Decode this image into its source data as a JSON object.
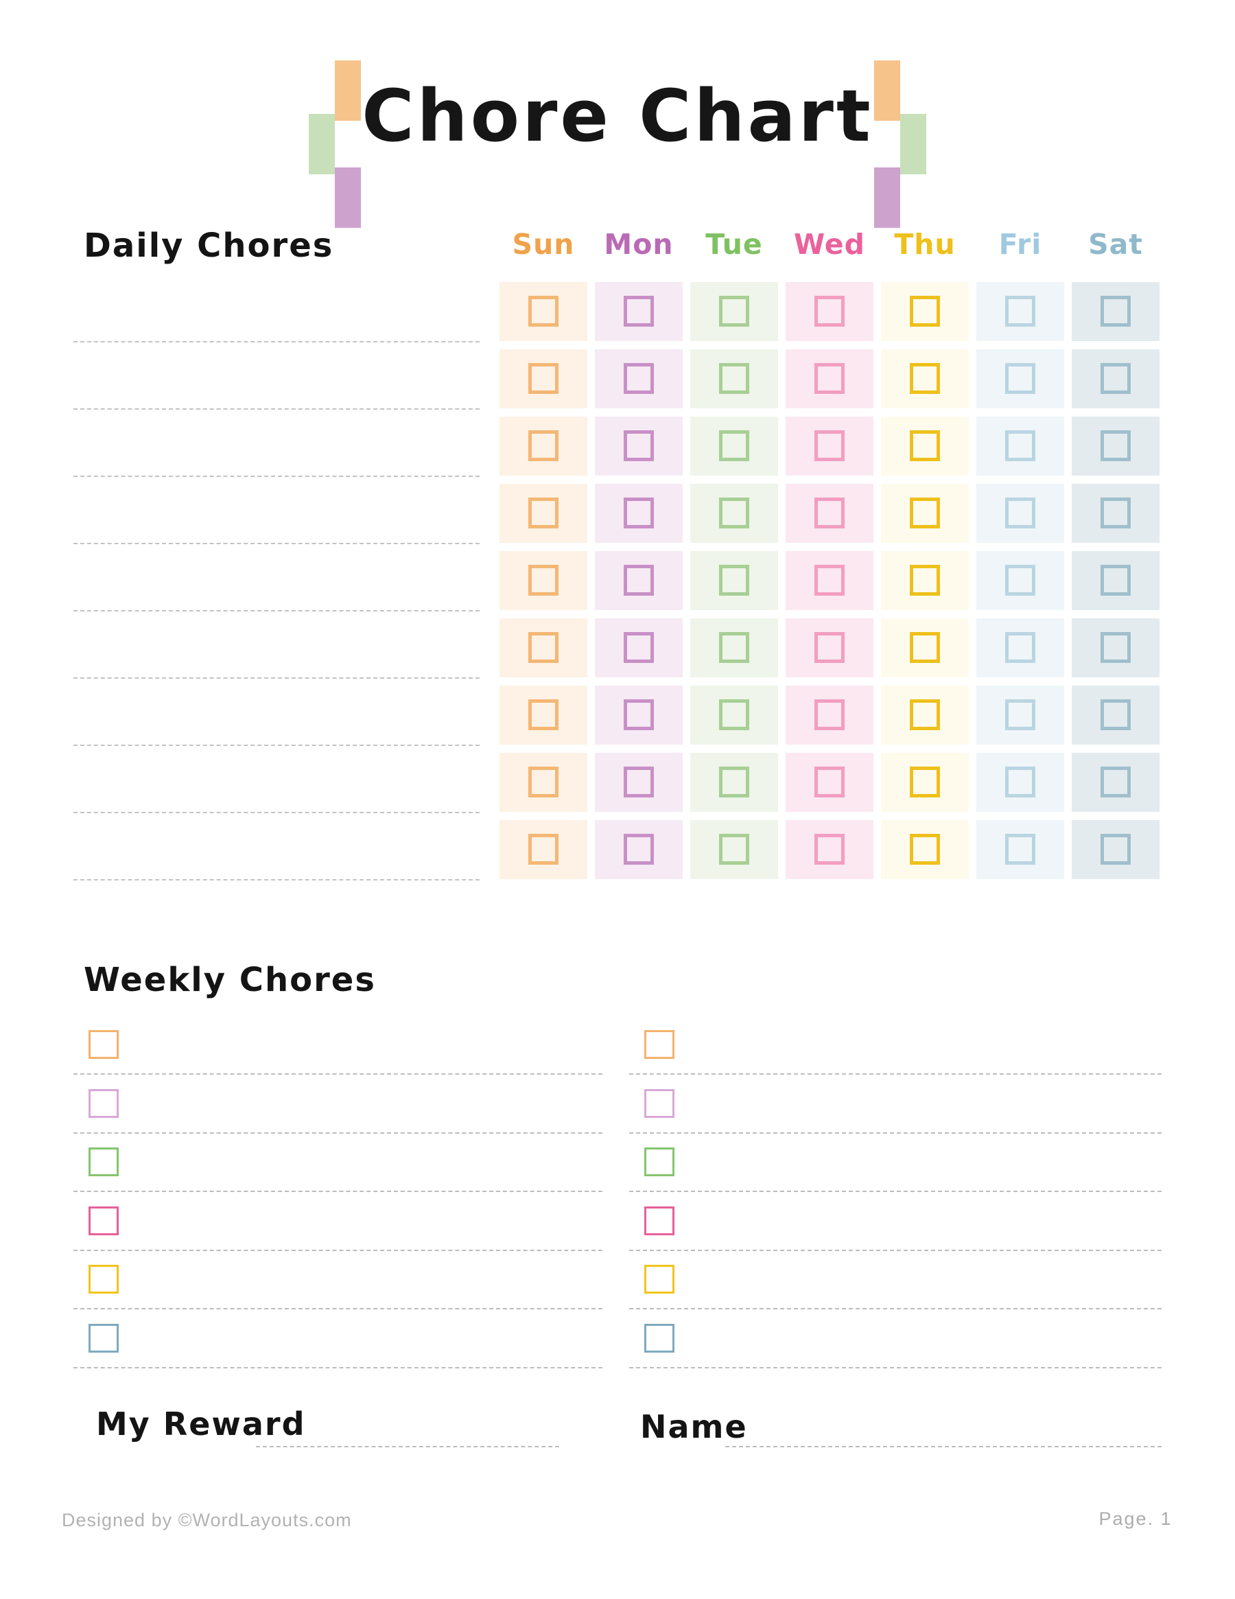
{
  "page": {
    "title": "Chore Chart"
  },
  "decoration": {
    "orange": "#F6C38B",
    "green": "#C7E0BA",
    "purple": "#CDA3CE"
  },
  "daily": {
    "heading": "Daily Chores",
    "rows": 9,
    "days": [
      {
        "label": "Sun",
        "text_color": "#F0A24B",
        "cell_bg": "#FDF2E5",
        "box_border": "#F3B774"
      },
      {
        "label": "Mon",
        "text_color": "#B96BB4",
        "cell_bg": "#F6EAF4",
        "box_border": "#C890C6"
      },
      {
        "label": "Tue",
        "text_color": "#7FC162",
        "cell_bg": "#EFF5EA",
        "box_border": "#A8CF96"
      },
      {
        "label": "Wed",
        "text_color": "#EA619C",
        "cell_bg": "#FBE8F1",
        "box_border": "#F29EC0"
      },
      {
        "label": "Thu",
        "text_color": "#EEC01A",
        "cell_bg": "#FEFBED",
        "box_border": "#EEC01B"
      },
      {
        "label": "Fri",
        "text_color": "#9FC9E0",
        "cell_bg": "#EFF5F8",
        "box_border": "#BAD5E2"
      },
      {
        "label": "Sat",
        "text_color": "#8FB9CB",
        "cell_bg": "#E3EBEE",
        "box_border": "#A0BFCD"
      }
    ]
  },
  "weekly": {
    "heading": "Weekly Chores",
    "columns": 2,
    "items_per_column": 6,
    "item_box_colors": [
      "#F4B26E",
      "#D9A9D6",
      "#85C46F",
      "#E7609A",
      "#F2C41D",
      "#7FA9BD"
    ]
  },
  "fields": {
    "reward_label": "My Reward",
    "name_label": "Name"
  },
  "footer": {
    "credit": "Designed by ©WordLayouts.com",
    "page_number": "Page. 1"
  }
}
